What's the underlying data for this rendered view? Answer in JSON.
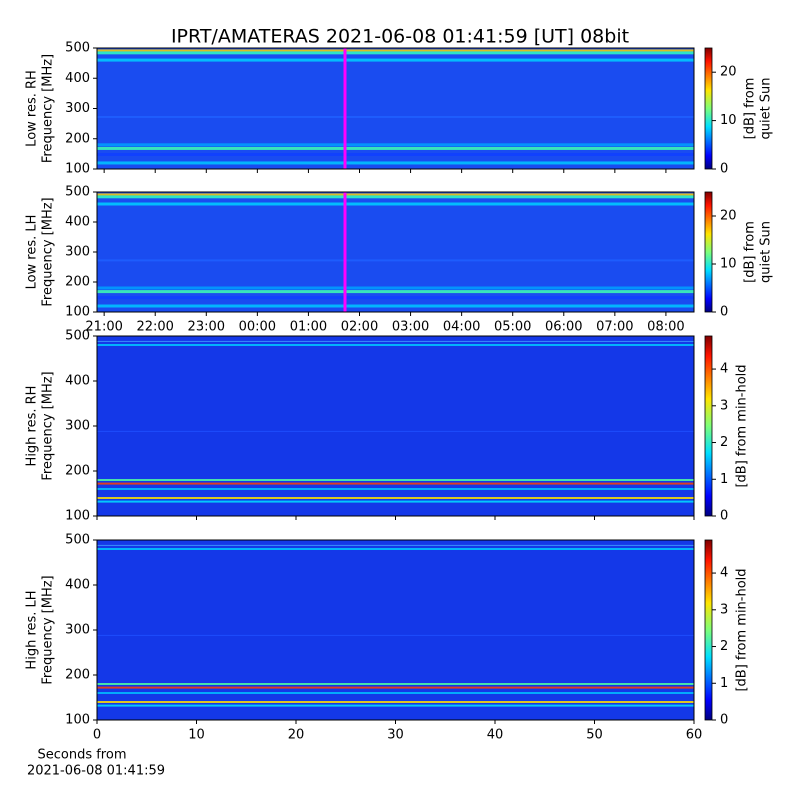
{
  "chart_data": [
    {
      "type": "heatmap",
      "title": "IPRT/AMATERAS 2021-06-08 01:41:59 [UT]   08bit",
      "ylabel": [
        "Low res. RH",
        "Frequency [MHz]"
      ],
      "ylim": [
        100,
        500
      ],
      "yticks": [
        100,
        200,
        300,
        400,
        500
      ],
      "xlim": [
        20.86,
        32.55
      ],
      "xticks": [
        21,
        22,
        23,
        24,
        25,
        26,
        27,
        28,
        29,
        30,
        31,
        32
      ],
      "colorbar": {
        "label": [
          "[dB] from",
          "quiet Sun"
        ],
        "lim": [
          0,
          25
        ],
        "ticks": [
          0,
          10,
          20
        ]
      }
    },
    {
      "type": "heatmap",
      "ylabel": [
        "Low res. LH",
        "Frequency [MHz]"
      ],
      "ylim": [
        100,
        500
      ],
      "yticks": [
        100,
        200,
        300,
        400,
        500
      ],
      "xlim": [
        20.86,
        32.55
      ],
      "xticks": [
        {
          "value": 21,
          "label": "21:00"
        },
        {
          "value": 22,
          "label": "22:00"
        },
        {
          "value": 23,
          "label": "23:00"
        },
        {
          "value": 24,
          "label": "00:00"
        },
        {
          "value": 25,
          "label": "01:00"
        },
        {
          "value": 26,
          "label": "02:00"
        },
        {
          "value": 27,
          "label": "03:00"
        },
        {
          "value": 28,
          "label": "04:00"
        },
        {
          "value": 29,
          "label": "05:00"
        },
        {
          "value": 30,
          "label": "06:00"
        },
        {
          "value": 31,
          "label": "07:00"
        },
        {
          "value": 32,
          "label": "08:00"
        }
      ],
      "colorbar": {
        "label": [
          "[dB] from",
          "quiet Sun"
        ],
        "lim": [
          0,
          25
        ],
        "ticks": [
          0,
          10,
          20
        ]
      }
    },
    {
      "type": "heatmap",
      "ylabel": [
        "High res. RH",
        "Frequency [MHz]"
      ],
      "ylim": [
        100,
        500
      ],
      "yticks": [
        100,
        200,
        300,
        400,
        500
      ],
      "xlim": [
        0,
        60
      ],
      "xticks": [
        0,
        10,
        20,
        30,
        40,
        50,
        60
      ],
      "colorbar": {
        "label": [
          "[dB] from min-hold"
        ],
        "lim": [
          0,
          4.9
        ],
        "ticks": [
          0,
          1,
          2,
          3,
          4
        ]
      }
    },
    {
      "type": "heatmap",
      "ylabel": [
        "High res. LH",
        "Frequency [MHz]"
      ],
      "ylim": [
        100,
        500
      ],
      "yticks": [
        100,
        200,
        300,
        400,
        500
      ],
      "xlim": [
        0,
        60
      ],
      "xticks": [
        0,
        10,
        20,
        30,
        40,
        50,
        60
      ],
      "xlabel": [
        "Seconds from",
        "2021-06-08 01:41:59"
      ],
      "colorbar": {
        "label": [
          "[dB] from min-hold"
        ],
        "lim": [
          0,
          4.9
        ],
        "ticks": [
          0,
          1,
          2,
          3,
          4
        ]
      }
    }
  ]
}
